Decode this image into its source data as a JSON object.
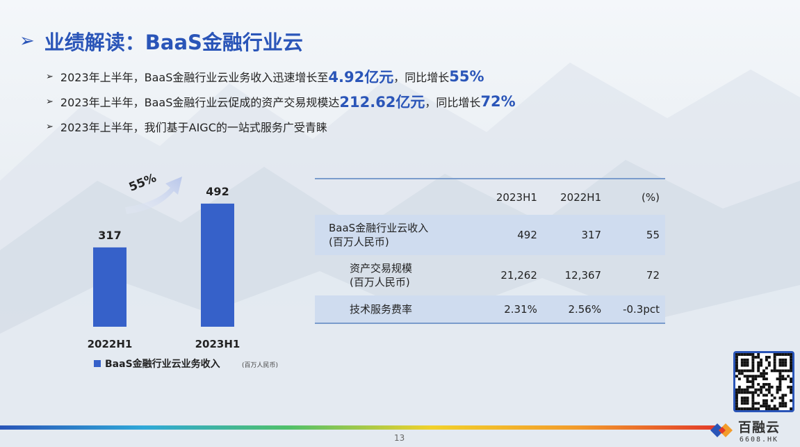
{
  "title": "业绩解读：BaaS金融行业云",
  "bullets": [
    {
      "pre": "2023年上半年，BaaS金融行业云业务收入迅速增长至",
      "hl1": "4.92亿元",
      "mid": "，同比增长",
      "hl2": "55%"
    },
    {
      "pre": "2023年上半年，BaaS金融行业云促成的资产交易规模达",
      "hl1": "212.62亿元",
      "mid": "，同比增长",
      "hl2": "72%"
    },
    {
      "pre": "2023年上半年，我们基于AIGC的一站式服务广受青睐",
      "hl1": "",
      "mid": "",
      "hl2": ""
    }
  ],
  "chart_data": {
    "type": "bar",
    "categories": [
      "2022H1",
      "2023H1"
    ],
    "values": [
      317,
      492
    ],
    "legend": "BaaS金融行业云业务收入",
    "legend_unit": "(百万人民币)",
    "growth_label": "55%",
    "color": "#3661c9"
  },
  "table": {
    "headers": [
      "",
      "2023H1",
      "2022H1",
      "(%)"
    ],
    "rows": [
      {
        "label1": "BaaS金融行业云收入",
        "label2": "(百万人民币)",
        "v1": "492",
        "v2": "317",
        "v3": "55"
      },
      {
        "label1": "资产交易规模",
        "label2": "(百万人民币)",
        "v1": "21,262",
        "v2": "12,367",
        "v3": "72"
      },
      {
        "label1": "技术服务费率",
        "label2": "",
        "v1": "2.31%",
        "v2": "2.56%",
        "v3": "-0.3pct"
      }
    ]
  },
  "footer": {
    "page": "13",
    "brand_name": "百融云",
    "brand_url": "6608.HK"
  }
}
